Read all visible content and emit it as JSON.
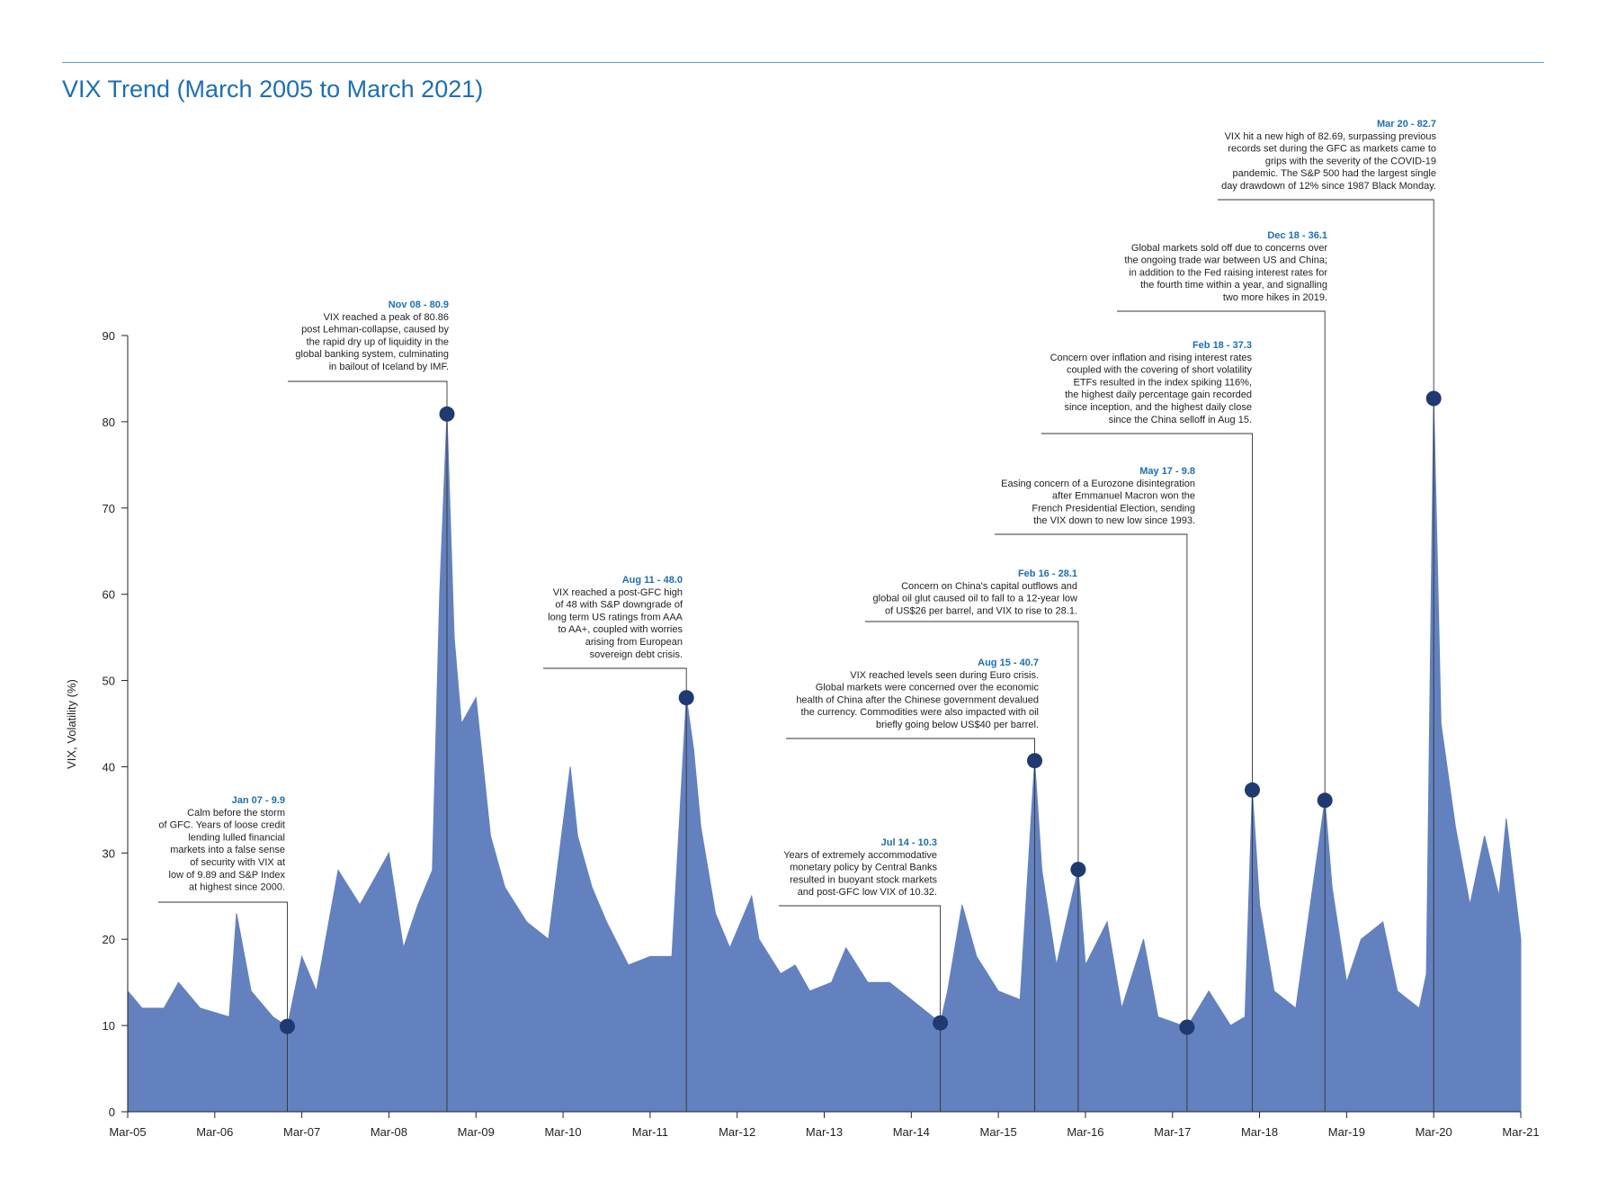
{
  "page": {
    "title": "VIX Trend (March 2005 to March 2021)",
    "colors": {
      "title": "#1d6fb0",
      "area": "#6381be",
      "marker": "#1f3a70",
      "rule": "#5b9fd3"
    }
  },
  "chart_data": {
    "type": "area",
    "title": "VIX Trend (March 2005 to March 2021)",
    "xlabel": "",
    "ylabel": "VIX, Volatility (%)",
    "ylim": [
      0,
      90
    ],
    "yticks": [
      0,
      10,
      20,
      30,
      40,
      50,
      60,
      70,
      80,
      90
    ],
    "xlim": [
      "2005-03",
      "2021-03"
    ],
    "xticks": [
      "Mar-05",
      "Mar-06",
      "Mar-07",
      "Mar-08",
      "Mar-09",
      "Mar-10",
      "Mar-11",
      "Mar-12",
      "Mar-13",
      "Mar-14",
      "Mar-15",
      "Mar-16",
      "Mar-17",
      "Mar-18",
      "Mar-19",
      "Mar-20",
      "Mar-21"
    ],
    "grid": false,
    "series": [
      {
        "x": [
          "2005-03",
          "2005-05",
          "2005-08",
          "2005-10",
          "2006-01",
          "2006-05",
          "2006-06",
          "2006-08",
          "2006-11",
          "2007-01",
          "2007-03",
          "2007-05",
          "2007-08",
          "2007-11",
          "2008-01",
          "2008-03",
          "2008-05",
          "2008-07",
          "2008-09",
          "2008-10",
          "2008-11",
          "2008-12",
          "2009-01",
          "2009-03",
          "2009-05",
          "2009-07",
          "2009-10",
          "2010-01",
          "2010-04",
          "2010-05",
          "2010-07",
          "2010-09",
          "2010-12",
          "2011-03",
          "2011-06",
          "2011-08",
          "2011-09",
          "2011-10",
          "2011-12",
          "2012-02",
          "2012-05",
          "2012-06",
          "2012-09",
          "2012-11",
          "2013-01",
          "2013-04",
          "2013-06",
          "2013-09",
          "2013-12",
          "2014-03",
          "2014-07",
          "2014-08",
          "2014-10",
          "2014-12",
          "2015-03",
          "2015-06",
          "2015-08",
          "2015-09",
          "2015-11",
          "2016-02",
          "2016-03",
          "2016-06",
          "2016-08",
          "2016-11",
          "2017-01",
          "2017-05",
          "2017-08",
          "2017-11",
          "2018-01",
          "2018-02",
          "2018-03",
          "2018-05",
          "2018-08",
          "2018-10",
          "2018-12",
          "2019-01",
          "2019-03",
          "2019-05",
          "2019-08",
          "2019-10",
          "2020-01",
          "2020-02",
          "2020-03",
          "2020-04",
          "2020-06",
          "2020-08",
          "2020-10",
          "2020-12",
          "2021-01",
          "2021-03"
        ],
        "values": [
          14,
          12,
          12,
          15,
          12,
          11,
          23,
          14,
          11,
          9.9,
          18,
          14,
          28,
          24,
          27,
          30,
          19,
          24,
          28,
          60,
          80.9,
          55,
          45,
          48,
          32,
          26,
          22,
          20,
          40,
          32,
          26,
          22,
          17,
          18,
          18,
          48.0,
          42,
          33,
          23,
          19,
          25,
          20,
          16,
          17,
          14,
          15,
          19,
          15,
          15,
          13,
          10.3,
          14,
          24,
          18,
          14,
          13,
          40.7,
          28,
          17,
          28.1,
          17,
          22,
          12,
          20,
          11,
          9.8,
          14,
          10,
          11,
          37.3,
          24,
          14,
          12,
          24,
          36.1,
          26,
          15,
          20,
          22,
          14,
          12,
          16,
          82.7,
          45,
          33,
          24,
          32,
          25,
          34,
          20
        ]
      }
    ],
    "annotations": [
      {
        "date": "2007-01",
        "value": 9.9,
        "label": "Jan 07 - 9.9",
        "text": "Calm before the storm\nof GFC. Years of loose credit\nlending lulled financial\nmarkets into a false sense\nof security with VIX at\nlow of 9.89 and S&P Index\nat highest since 2000."
      },
      {
        "date": "2008-11",
        "value": 80.9,
        "label": "Nov 08 - 80.9",
        "text": "VIX reached a peak of 80.86\npost Lehman-collapse, caused by\nthe rapid dry up of liquidity in the\nglobal banking system, culminating\nin bailout of Iceland by IMF."
      },
      {
        "date": "2011-08",
        "value": 48.0,
        "label": "Aug 11 - 48.0",
        "text": "VIX reached a post-GFC high\nof 48 with S&P downgrade of\nlong term US ratings from AAA\nto AA+, coupled with worries\narising from European\nsovereign debt crisis."
      },
      {
        "date": "2014-07",
        "value": 10.3,
        "label": "Jul 14 - 10.3",
        "text": "Years of extremely accommodative\nmonetary policy by Central Banks\nresulted in buoyant stock markets\nand post-GFC low VIX of 10.32."
      },
      {
        "date": "2015-08",
        "value": 40.7,
        "label": "Aug 15 - 40.7",
        "text": "VIX reached levels seen during Euro crisis.\nGlobal markets were concerned over the economic\nhealth of China after the Chinese government devalued\nthe currency. Commodities were also impacted with oil\nbriefly going below US$40 per barrel."
      },
      {
        "date": "2016-02",
        "value": 28.1,
        "label": "Feb 16 - 28.1",
        "text": "Concern on China's capital outflows and\nglobal oil glut caused oil to fall to a 12-year low\nof US$26 per barrel, and VIX to rise to 28.1."
      },
      {
        "date": "2017-05",
        "value": 9.8,
        "label": "May 17 - 9.8",
        "text": "Easing concern of a Eurozone disintegration\nafter Emmanuel Macron won the\nFrench Presidential Election, sending\nthe VIX down to new low since 1993."
      },
      {
        "date": "2018-02",
        "value": 37.3,
        "label": "Feb 18 - 37.3",
        "text": "Concern over inflation and rising interest rates\ncoupled with the covering of short volatility\nETFs resulted in the index spiking 116%,\nthe highest daily percentage gain recorded\nsince inception, and the highest daily close\nsince the China selloff in Aug 15."
      },
      {
        "date": "2018-12",
        "value": 36.1,
        "label": "Dec 18 - 36.1",
        "text": "Global markets sold off due to concerns over\nthe ongoing trade war between US and China;\nin addition to the Fed raising interest rates for\nthe fourth time within a year, and signalling\ntwo more hikes in 2019."
      },
      {
        "date": "2020-03",
        "value": 82.7,
        "label": "Mar 20 - 82.7",
        "text": "VIX hit a new high of 82.69, surpassing previous\nrecords set during the GFC as markets came to\ngrips with the severity of the COVID-19\npandemic. The S&P 500 had the largest single\nday drawdown of 12% since 1987 Black Monday."
      }
    ]
  }
}
